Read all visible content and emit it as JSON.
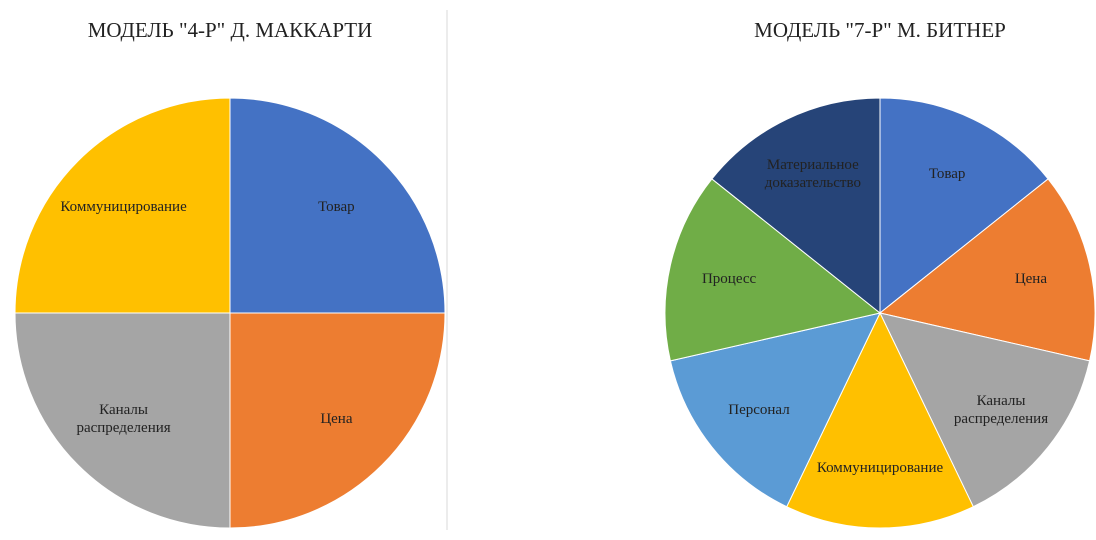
{
  "chart_data": [
    {
      "type": "pie",
      "title": "МОДЕЛЬ \"4-Р\" Д. МАККАРТИ",
      "categories": [
        "Товар",
        "Цена",
        "Каналы распределения",
        "Коммуницирование"
      ],
      "values": [
        25,
        25,
        25,
        25
      ],
      "colors": [
        "#4472c4",
        "#ed7d31",
        "#a5a5a5",
        "#ffc000"
      ]
    },
    {
      "type": "pie",
      "title": "МОДЕЛЬ \"7-Р\" М. БИТНЕР",
      "categories": [
        "Товар",
        "Цена",
        "Каналы распределения",
        "Коммуницирование",
        "Персонал",
        "Процесс",
        "Материальное доказательство"
      ],
      "values": [
        14.3,
        14.3,
        14.3,
        14.3,
        14.3,
        14.3,
        14.3
      ],
      "colors": [
        "#4472c4",
        "#ed7d31",
        "#a5a5a5",
        "#ffc000",
        "#5b9bd5",
        "#70ad47",
        "#264478"
      ]
    }
  ]
}
